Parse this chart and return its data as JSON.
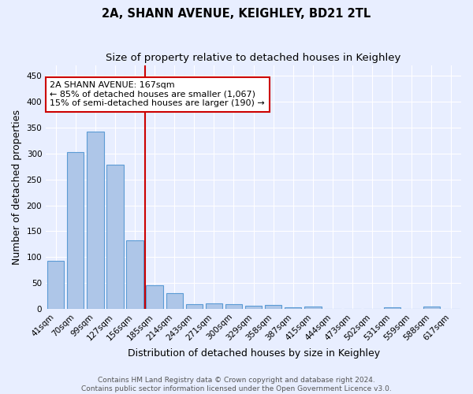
{
  "title": "2A, SHANN AVENUE, KEIGHLEY, BD21 2TL",
  "subtitle": "Size of property relative to detached houses in Keighley",
  "xlabel": "Distribution of detached houses by size in Keighley",
  "ylabel": "Number of detached properties",
  "categories": [
    "41sqm",
    "70sqm",
    "99sqm",
    "127sqm",
    "156sqm",
    "185sqm",
    "214sqm",
    "243sqm",
    "271sqm",
    "300sqm",
    "329sqm",
    "358sqm",
    "387sqm",
    "415sqm",
    "444sqm",
    "473sqm",
    "502sqm",
    "531sqm",
    "559sqm",
    "588sqm",
    "617sqm"
  ],
  "values": [
    92,
    303,
    343,
    278,
    133,
    46,
    30,
    9,
    11,
    9,
    6,
    8,
    3,
    4,
    0,
    0,
    0,
    3,
    0,
    5,
    0
  ],
  "bar_color": "#aec6e8",
  "bar_edge_color": "#5b9bd5",
  "reference_line_x": 4.5,
  "reference_line_color": "#cc0000",
  "annotation_line1": "2A SHANN AVENUE: 167sqm",
  "annotation_line2": "← 85% of detached houses are smaller (1,067)",
  "annotation_line3": "15% of semi-detached houses are larger (190) →",
  "annotation_box_color": "#ffffff",
  "annotation_box_edge_color": "#cc0000",
  "footer_line1": "Contains HM Land Registry data © Crown copyright and database right 2024.",
  "footer_line2": "Contains public sector information licensed under the Open Government Licence v3.0.",
  "ylim": [
    0,
    470
  ],
  "yticks": [
    0,
    50,
    100,
    150,
    200,
    250,
    300,
    350,
    400,
    450
  ],
  "background_color": "#e8eeff",
  "axes_background": "#e8eeff",
  "grid_color": "#ffffff",
  "title_fontsize": 10.5,
  "subtitle_fontsize": 9.5,
  "tick_fontsize": 7.5,
  "label_fontsize": 9,
  "footer_fontsize": 6.5
}
